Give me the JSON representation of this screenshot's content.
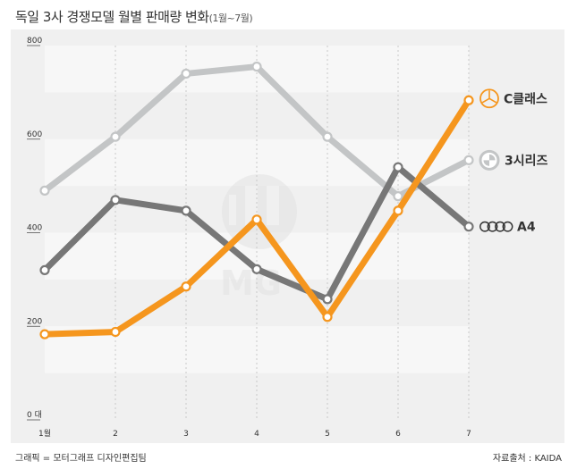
{
  "header": {
    "title": "독일 3사 경쟁모델 월별 판매량 변화",
    "subtitle": "(1월~7월)"
  },
  "footer": {
    "credit": "그래픽 = 모터그래프 디자인편집팀",
    "source": "자료출처 : KAIDA"
  },
  "chart_data": {
    "type": "line",
    "title": "독일 3사 경쟁모델 월별 판매량 변화",
    "x_labels": [
      "1월",
      "2",
      "3",
      "4",
      "5",
      "6",
      "7"
    ],
    "y_ticks": [
      {
        "value": 0,
        "label": "0 대"
      },
      {
        "value": 200,
        "label": "200"
      },
      {
        "value": 400,
        "label": "400"
      },
      {
        "value": 600,
        "label": "600"
      },
      {
        "value": 800,
        "label": "800"
      }
    ],
    "ylim": [
      0,
      800
    ],
    "series": [
      {
        "name": "3시리즈",
        "color": "#c3c5c6",
        "values": [
          490,
          605,
          740,
          755,
          605,
          478,
          555
        ]
      },
      {
        "name": "A4",
        "color": "#777777",
        "values": [
          320,
          470,
          447,
          322,
          258,
          540,
          413
        ]
      },
      {
        "name": "C클래스",
        "color": "#f5961e",
        "values": [
          183,
          188,
          285,
          428,
          220,
          447,
          683
        ]
      }
    ]
  }
}
